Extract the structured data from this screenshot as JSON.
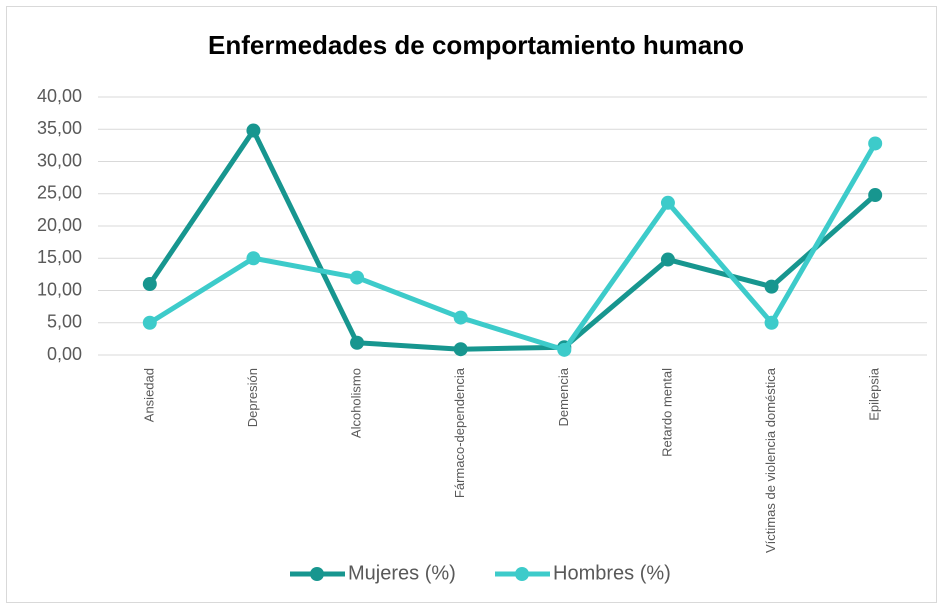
{
  "chart_data": {
    "type": "line",
    "title": "Enfermedades de comportamiento humano",
    "categories": [
      "Ansiedad",
      "Depresión",
      "Alcoholismo",
      "Fármaco-dependencia",
      "Demencia",
      "Retardo mental",
      "Víctimas de violencia doméstica",
      "Epilepsia"
    ],
    "series": [
      {
        "name": "Mujeres (%)",
        "color": "#17968f",
        "values": [
          11.0,
          34.8,
          1.9,
          0.9,
          1.2,
          14.8,
          10.6,
          24.8
        ]
      },
      {
        "name": "Hombres (%)",
        "color": "#3dcbca",
        "values": [
          5.0,
          15.0,
          12.0,
          5.8,
          0.8,
          23.6,
          5.0,
          32.8
        ]
      }
    ],
    "ylim": [
      0,
      40
    ],
    "yticks": [
      {
        "value": 0,
        "label": "0,00"
      },
      {
        "value": 5,
        "label": "5,00"
      },
      {
        "value": 10,
        "label": "10,00"
      },
      {
        "value": 15,
        "label": "15,00"
      },
      {
        "value": 20,
        "label": "20,00"
      },
      {
        "value": 25,
        "label": "25,00"
      },
      {
        "value": 30,
        "label": "30,00"
      },
      {
        "value": 35,
        "label": "35,00"
      },
      {
        "value": 40,
        "label": "40,00"
      }
    ],
    "grid": true,
    "legend": "bottom"
  }
}
